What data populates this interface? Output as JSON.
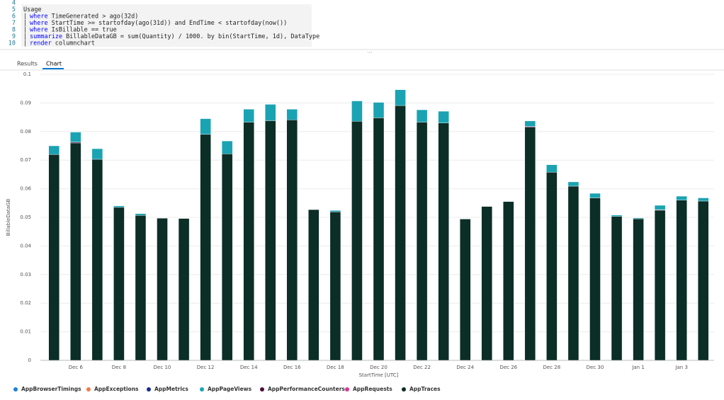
{
  "editor": {
    "lines": [
      {
        "number": 4
      },
      {
        "number": 5,
        "text": "Usage"
      },
      {
        "number": 6,
        "keyword": "where",
        "text": "TimeGenerated > ago(32d)"
      },
      {
        "number": 7,
        "keyword": "where",
        "text": "StartTime >= startofday(ago(31d)) and EndTime < startofday(now())"
      },
      {
        "number": 8,
        "keyword": "where",
        "text": "IsBillable == true"
      },
      {
        "number": 9,
        "keyword": "summarize",
        "text": "BillableDataGB = sum(Quantity) / 1000. by bin(StartTime, 1d), DataType"
      },
      {
        "number": 10,
        "keyword": "render",
        "text": "columnchart"
      }
    ]
  },
  "tabs": [
    "Results",
    "Chart"
  ],
  "chart_data": {
    "type": "stacked_bar",
    "x_label": "StartTime [UTC]",
    "y_label": "BillableDataGB",
    "categories": [
      null,
      "Dec 6",
      null,
      "Dec 8",
      null,
      "Dec 10",
      null,
      "Dec 12",
      null,
      "Dec 14",
      null,
      "Dec 16",
      null,
      "Dec 18",
      null,
      "Dec 20",
      null,
      "Dec 22",
      null,
      "Dec 24",
      null,
      "Dec 26",
      null,
      "Dec 28",
      null,
      "Dec 30",
      null,
      "Jan 1",
      null,
      "Jan 3",
      null
    ],
    "ylim": [
      0,
      0.1
    ],
    "yticks": [
      0,
      0.01,
      0.02,
      0.03,
      0.04,
      0.05,
      0.06,
      0.07,
      0.08,
      0.09,
      0.1
    ],
    "grid": true,
    "legend": "bottom",
    "series": [
      {
        "name": "AppBrowserTimings",
        "color": "#1f7fd6",
        "values": [
          0,
          0,
          0,
          0,
          0,
          0,
          0,
          0,
          0,
          0,
          0,
          0,
          0,
          0,
          0,
          0,
          0,
          0,
          0,
          0,
          0,
          0,
          0,
          0,
          0,
          0,
          0,
          0,
          0,
          0,
          0
        ]
      },
      {
        "name": "AppExceptions",
        "color": "#ee7a4c",
        "values": [
          0,
          0,
          0,
          0,
          0,
          0,
          0,
          0,
          0,
          0,
          0,
          0,
          0,
          0,
          0,
          0,
          0,
          0,
          0,
          0,
          0,
          0,
          0,
          0,
          0,
          0,
          0,
          0,
          0,
          0,
          0
        ]
      },
      {
        "name": "AppMetrics",
        "color": "#1a2b8c",
        "values": [
          0,
          0,
          0,
          0,
          0,
          0,
          0,
          0,
          0,
          0,
          0,
          0,
          0,
          0,
          0,
          0,
          0,
          0,
          0,
          0,
          0,
          0,
          0,
          0,
          0,
          0,
          0,
          0,
          0,
          0,
          0
        ]
      },
      {
        "name": "AppPageViews",
        "color": "#1aa3b3",
        "values": [
          0.003,
          0.0035,
          0.0037,
          0.0005,
          0.0006,
          0,
          0,
          0.0055,
          0.0045,
          0.0045,
          0.0057,
          0.0037,
          0,
          0.0005,
          0.0071,
          0.0054,
          0.0055,
          0.0043,
          0.0041,
          0,
          0,
          0,
          0.0019,
          0.0026,
          0.0015,
          0.0016,
          0.0005,
          0.0003,
          0.0015,
          0.0014,
          0.0011
        ]
      },
      {
        "name": "AppPerformanceCounters",
        "color": "#4d0f3b",
        "values": [
          0,
          0.0003,
          0,
          0,
          0,
          0,
          0,
          0,
          0,
          0,
          0,
          0,
          0,
          0,
          0,
          0,
          0,
          0,
          0,
          0,
          0,
          0,
          0.0003,
          0,
          0,
          0,
          0,
          0,
          0.0002,
          0,
          0
        ]
      },
      {
        "name": "AppRequests",
        "color": "#e0359b",
        "values": [
          0,
          0,
          0,
          0,
          0,
          0,
          0,
          0,
          0,
          0,
          0,
          0,
          0,
          0,
          0,
          0,
          0,
          0,
          0,
          0,
          0,
          0,
          0,
          0,
          0,
          0,
          0,
          0,
          0,
          0,
          0
        ]
      },
      {
        "name": "AppTraces",
        "color": "#0b2e26",
        "values": [
          0.072,
          0.076,
          0.0703,
          0.0535,
          0.0507,
          0.0497,
          0.0496,
          0.079,
          0.0722,
          0.0833,
          0.0838,
          0.0841,
          0.0527,
          0.0519,
          0.0836,
          0.0848,
          0.0891,
          0.0833,
          0.083,
          0.0494,
          0.0538,
          0.0555,
          0.0815,
          0.0658,
          0.0609,
          0.0568,
          0.0503,
          0.0495,
          0.0525,
          0.056,
          0.0557
        ]
      }
    ]
  }
}
